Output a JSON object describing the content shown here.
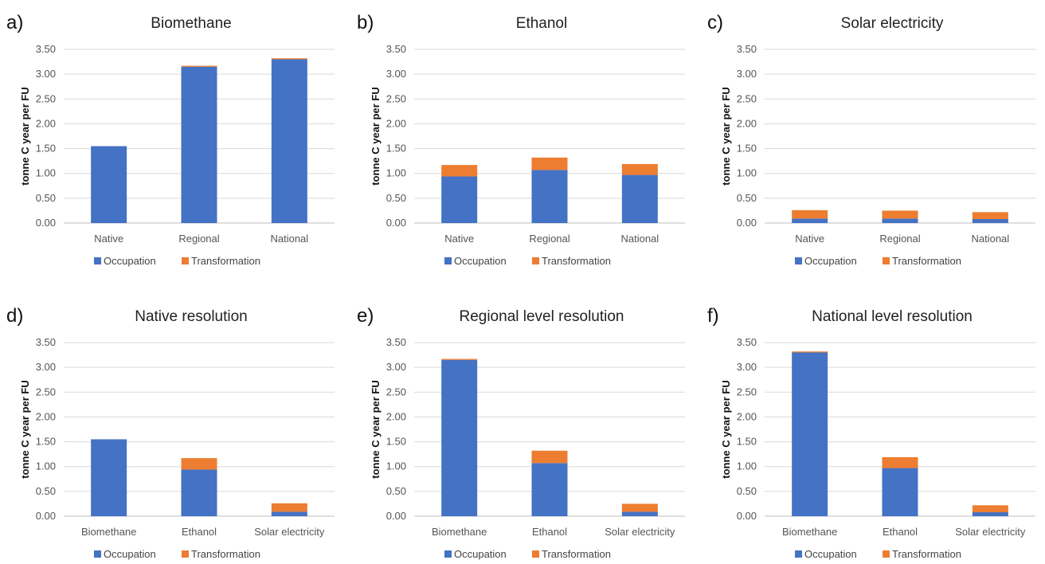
{
  "colors": {
    "occupation": "#4472c4",
    "transformation": "#ed7d31"
  },
  "chart_data": [
    {
      "type": "bar",
      "stacked": true,
      "panel": "a)",
      "title": "Biomethane",
      "ylabel": "tonne C year per FU",
      "ylim": [
        0,
        3.5
      ],
      "yticks": [
        "0.00",
        "0.50",
        "1.00",
        "1.50",
        "2.00",
        "2.50",
        "3.00",
        "3.50"
      ],
      "categories": [
        "Native",
        "Regional",
        "National"
      ],
      "series": [
        {
          "name": "Occupation",
          "values": [
            1.55,
            3.15,
            3.3
          ]
        },
        {
          "name": "Transformation",
          "values": [
            0.0,
            0.02,
            0.02
          ]
        }
      ],
      "legend": "bottom",
      "grid": true
    },
    {
      "type": "bar",
      "stacked": true,
      "panel": "b)",
      "title": "Ethanol",
      "ylabel": "tonne C year per FU",
      "ylim": [
        0,
        3.5
      ],
      "yticks": [
        "0.00",
        "0.50",
        "1.00",
        "1.50",
        "2.00",
        "2.50",
        "3.00",
        "3.50"
      ],
      "categories": [
        "Native",
        "Regional",
        "National"
      ],
      "series": [
        {
          "name": "Occupation",
          "values": [
            0.94,
            1.07,
            0.97
          ]
        },
        {
          "name": "Transformation",
          "values": [
            0.23,
            0.25,
            0.22
          ]
        }
      ],
      "legend": "bottom",
      "grid": true
    },
    {
      "type": "bar",
      "stacked": true,
      "panel": "c)",
      "title": "Solar electricity",
      "ylabel": "tonne C year per FU",
      "ylim": [
        0,
        3.5
      ],
      "yticks": [
        "0.00",
        "0.50",
        "1.00",
        "1.50",
        "2.00",
        "2.50",
        "3.00",
        "3.50"
      ],
      "categories": [
        "Native",
        "Regional",
        "National"
      ],
      "series": [
        {
          "name": "Occupation",
          "values": [
            0.09,
            0.09,
            0.08
          ]
        },
        {
          "name": "Transformation",
          "values": [
            0.17,
            0.16,
            0.14
          ]
        }
      ],
      "legend": "bottom",
      "grid": true
    },
    {
      "type": "bar",
      "stacked": true,
      "panel": "d)",
      "title": "Native resolution",
      "ylabel": "tonne C year per FU",
      "ylim": [
        0,
        3.5
      ],
      "yticks": [
        "0.00",
        "0.50",
        "1.00",
        "1.50",
        "2.00",
        "2.50",
        "3.00",
        "3.50"
      ],
      "categories": [
        "Biomethane",
        "Ethanol",
        "Solar electricity"
      ],
      "series": [
        {
          "name": "Occupation",
          "values": [
            1.55,
            0.94,
            0.09
          ]
        },
        {
          "name": "Transformation",
          "values": [
            0.0,
            0.23,
            0.17
          ]
        }
      ],
      "legend": "bottom",
      "grid": true
    },
    {
      "type": "bar",
      "stacked": true,
      "panel": "e)",
      "title": "Regional level resolution",
      "ylabel": "tonne C year per FU",
      "ylim": [
        0,
        3.5
      ],
      "yticks": [
        "0.00",
        "0.50",
        "1.00",
        "1.50",
        "2.00",
        "2.50",
        "3.00",
        "3.50"
      ],
      "categories": [
        "Biomethane",
        "Ethanol",
        "Solar electricity"
      ],
      "series": [
        {
          "name": "Occupation",
          "values": [
            3.15,
            1.07,
            0.09
          ]
        },
        {
          "name": "Transformation",
          "values": [
            0.02,
            0.25,
            0.16
          ]
        }
      ],
      "legend": "bottom",
      "grid": true
    },
    {
      "type": "bar",
      "stacked": true,
      "panel": "f)",
      "title": "National level resolution",
      "ylabel": "tonne C year per FU",
      "ylim": [
        0,
        3.5
      ],
      "yticks": [
        "0.00",
        "0.50",
        "1.00",
        "1.50",
        "2.00",
        "2.50",
        "3.00",
        "3.50"
      ],
      "categories": [
        "Biomethane",
        "Ethanol",
        "Solar electricity"
      ],
      "series": [
        {
          "name": "Occupation",
          "values": [
            3.3,
            0.97,
            0.08
          ]
        },
        {
          "name": "Transformation",
          "values": [
            0.02,
            0.22,
            0.14
          ]
        }
      ],
      "legend": "bottom",
      "grid": true
    }
  ]
}
